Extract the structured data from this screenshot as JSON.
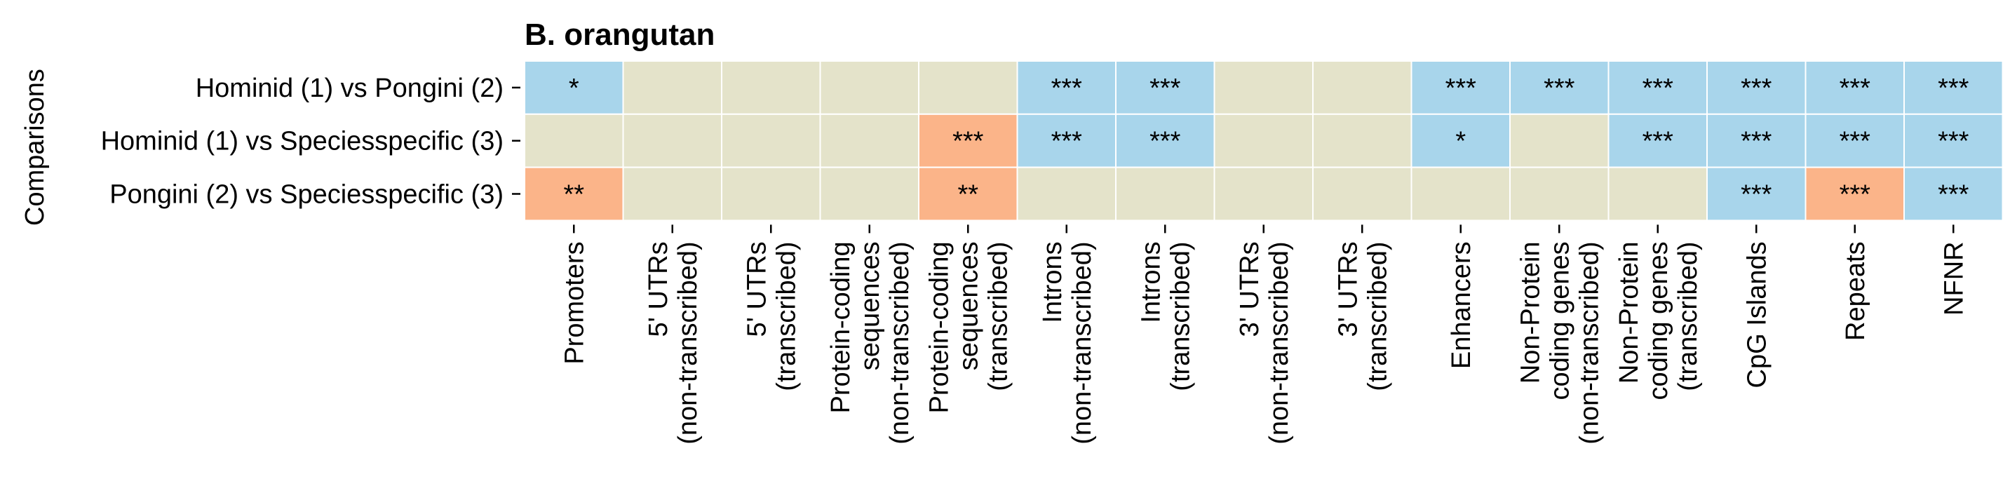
{
  "chart_data": {
    "type": "heatmap",
    "title": "B. orangutan",
    "ylabel": "Comparisons",
    "xlabel": "",
    "rows": [
      "Hominid (1) vs Pongini (2)",
      "Hominid (1) vs Speciesspecific (3)",
      "Pongini (2) vs Speciesspecific (3)"
    ],
    "columns": [
      [
        "Promoters"
      ],
      [
        "5' UTRs",
        "(non-transcribed)"
      ],
      [
        "5' UTRs",
        "(transcribed)"
      ],
      [
        "Protein-coding",
        "sequences",
        "(non-transcribed)"
      ],
      [
        "Protein-coding",
        "sequences",
        "(transcribed)"
      ],
      [
        "Introns",
        "(non-transcribed)"
      ],
      [
        "Introns",
        "(transcribed)"
      ],
      [
        "3' UTRs",
        "(non-transcribed)"
      ],
      [
        "3' UTRs",
        "(transcribed)"
      ],
      [
        "Enhancers"
      ],
      [
        "Non-Protein",
        "coding genes",
        "(non-transcribed)"
      ],
      [
        "Non-Protein",
        "coding genes",
        "(transcribed)"
      ],
      [
        "CpG Islands"
      ],
      [
        "Repeats"
      ],
      [
        "NFNR"
      ]
    ],
    "cells": [
      [
        {
          "label": "*",
          "state": "blue"
        },
        {
          "label": "",
          "state": "neutral"
        },
        {
          "label": "",
          "state": "neutral"
        },
        {
          "label": "",
          "state": "neutral"
        },
        {
          "label": "",
          "state": "neutral"
        },
        {
          "label": "***",
          "state": "blue"
        },
        {
          "label": "***",
          "state": "blue"
        },
        {
          "label": "",
          "state": "neutral"
        },
        {
          "label": "",
          "state": "neutral"
        },
        {
          "label": "***",
          "state": "blue"
        },
        {
          "label": "***",
          "state": "blue"
        },
        {
          "label": "***",
          "state": "blue"
        },
        {
          "label": "***",
          "state": "blue"
        },
        {
          "label": "***",
          "state": "blue"
        },
        {
          "label": "***",
          "state": "blue"
        }
      ],
      [
        {
          "label": "",
          "state": "neutral"
        },
        {
          "label": "",
          "state": "neutral"
        },
        {
          "label": "",
          "state": "neutral"
        },
        {
          "label": "",
          "state": "neutral"
        },
        {
          "label": "***",
          "state": "orange"
        },
        {
          "label": "***",
          "state": "blue"
        },
        {
          "label": "***",
          "state": "blue"
        },
        {
          "label": "",
          "state": "neutral"
        },
        {
          "label": "",
          "state": "neutral"
        },
        {
          "label": "*",
          "state": "blue"
        },
        {
          "label": "",
          "state": "neutral"
        },
        {
          "label": "***",
          "state": "blue"
        },
        {
          "label": "***",
          "state": "blue"
        },
        {
          "label": "***",
          "state": "blue"
        },
        {
          "label": "***",
          "state": "blue"
        }
      ],
      [
        {
          "label": "**",
          "state": "orange"
        },
        {
          "label": "",
          "state": "neutral"
        },
        {
          "label": "",
          "state": "neutral"
        },
        {
          "label": "",
          "state": "neutral"
        },
        {
          "label": "**",
          "state": "orange"
        },
        {
          "label": "",
          "state": "neutral"
        },
        {
          "label": "",
          "state": "neutral"
        },
        {
          "label": "",
          "state": "neutral"
        },
        {
          "label": "",
          "state": "neutral"
        },
        {
          "label": "",
          "state": "neutral"
        },
        {
          "label": "",
          "state": "neutral"
        },
        {
          "label": "",
          "state": "neutral"
        },
        {
          "label": "***",
          "state": "blue"
        },
        {
          "label": "***",
          "state": "orange"
        },
        {
          "label": "***",
          "state": "blue"
        }
      ]
    ],
    "colors": {
      "blue": "#a8d5eb",
      "orange": "#fbb489",
      "neutral": "#e4e3ca",
      "gridline": "#ffffff",
      "text": "#000000"
    },
    "grid": false,
    "legend": "none"
  }
}
